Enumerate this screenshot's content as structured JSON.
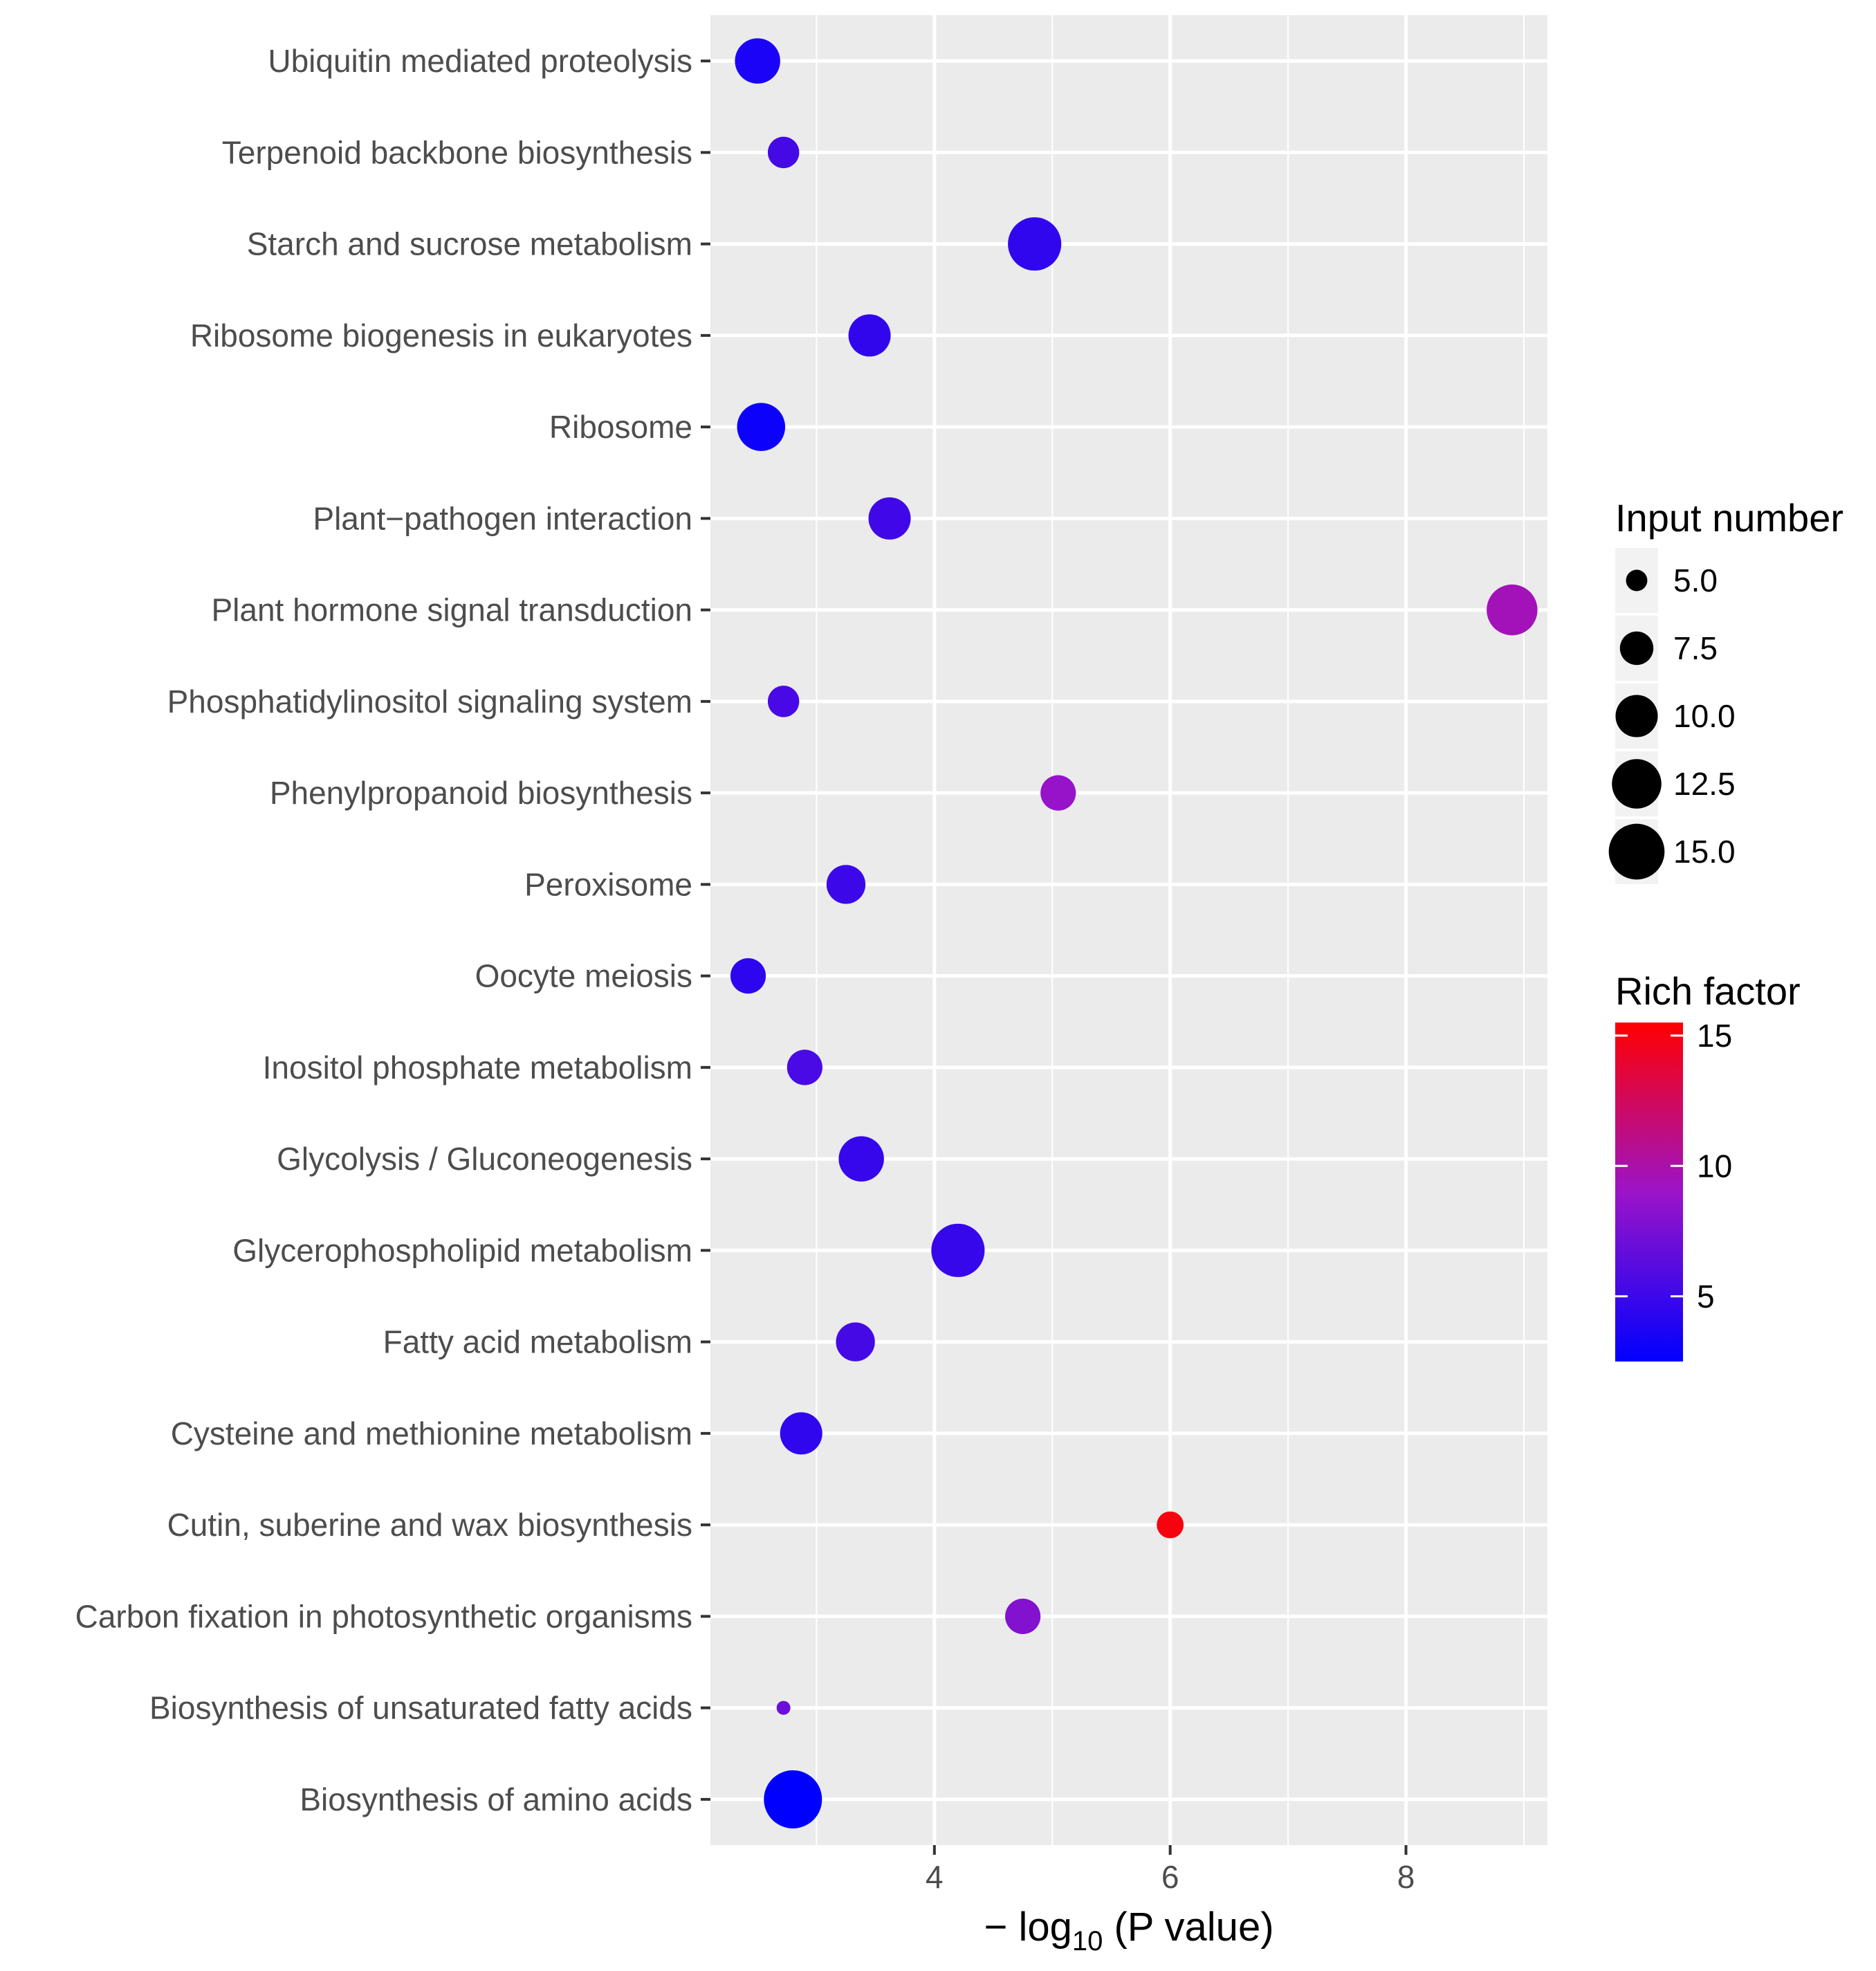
{
  "chart_data": {
    "type": "scatter",
    "title": "",
    "xlabel": {
      "prefix": "− log",
      "subscript": "10",
      "suffix": " (P value)"
    },
    "ylabel": "",
    "xlim": [
      2.1,
      9.2
    ],
    "xticks": [
      4,
      6,
      8
    ],
    "xtick_labels": [
      "4",
      "6",
      "8"
    ],
    "grid": true,
    "categories": [
      "Ubiquitin mediated proteolysis",
      "Terpenoid backbone biosynthesis",
      "Starch and sucrose metabolism",
      "Ribosome biogenesis in eukaryotes",
      "Ribosome",
      "Plant−pathogen interaction",
      "Plant hormone signal transduction",
      "Phosphatidylinositol signaling system",
      "Phenylpropanoid biosynthesis",
      "Peroxisome",
      "Oocyte meiosis",
      "Inositol phosphate metabolism",
      "Glycolysis / Gluconeogenesis",
      "Glycerophospholipid metabolism",
      "Fatty acid metabolism",
      "Cysteine and methionine metabolism",
      "Cutin, suberine and wax biosynthesis",
      "Carbon fixation in photosynthetic organisms",
      "Biosynthesis of unsaturated fatty acids",
      "Biosynthesis of amino acids"
    ],
    "points": [
      {
        "category": "Ubiquitin mediated proteolysis",
        "x": 2.5,
        "input_number": 11,
        "rich_factor": 3.6
      },
      {
        "category": "Terpenoid backbone biosynthesis",
        "x": 2.72,
        "input_number": 7,
        "rich_factor": 5.4
      },
      {
        "category": "Starch and sucrose metabolism",
        "x": 4.85,
        "input_number": 14,
        "rich_factor": 4.5
      },
      {
        "category": "Ribosome biogenesis in eukaryotes",
        "x": 3.45,
        "input_number": 10,
        "rich_factor": 4.6
      },
      {
        "category": "Ribosome",
        "x": 2.53,
        "input_number": 12,
        "rich_factor": 3.0
      },
      {
        "category": "Plant−pathogen interaction",
        "x": 3.62,
        "input_number": 10,
        "rich_factor": 5.2
      },
      {
        "category": "Plant hormone signal transduction",
        "x": 8.9,
        "input_number": 13,
        "rich_factor": 9.5
      },
      {
        "category": "Phosphatidylinositol signaling system",
        "x": 2.72,
        "input_number": 7,
        "rich_factor": 5.5
      },
      {
        "category": "Phenylpropanoid biosynthesis",
        "x": 5.05,
        "input_number": 8,
        "rich_factor": 8.8
      },
      {
        "category": "Peroxisome",
        "x": 3.25,
        "input_number": 9,
        "rich_factor": 5.0
      },
      {
        "category": "Oocyte meiosis",
        "x": 2.42,
        "input_number": 8,
        "rich_factor": 4.4
      },
      {
        "category": "Inositol phosphate metabolism",
        "x": 2.9,
        "input_number": 8,
        "rich_factor": 5.6
      },
      {
        "category": "Glycolysis / Gluconeogenesis",
        "x": 3.38,
        "input_number": 11,
        "rich_factor": 4.8
      },
      {
        "category": "Glycerophospholipid metabolism",
        "x": 4.2,
        "input_number": 14,
        "rich_factor": 4.8
      },
      {
        "category": "Fatty acid metabolism",
        "x": 3.33,
        "input_number": 9,
        "rich_factor": 5.4
      },
      {
        "category": "Cysteine and methionine metabolism",
        "x": 2.87,
        "input_number": 10,
        "rich_factor": 4.5
      },
      {
        "category": "Cutin, suberine and wax biosynthesis",
        "x": 6.0,
        "input_number": 6,
        "rich_factor": 15.0
      },
      {
        "category": "Carbon fixation in photosynthetic organisms",
        "x": 4.75,
        "input_number": 8,
        "rich_factor": 8.0
      },
      {
        "category": "Biosynthesis of unsaturated fatty acids",
        "x": 2.72,
        "input_number": 4,
        "rich_factor": 7.0
      },
      {
        "category": "Biosynthesis of amino acids",
        "x": 2.8,
        "input_number": 16,
        "rich_factor": 2.5
      }
    ],
    "size_legend": {
      "title": "Input number",
      "values": [
        5.0,
        7.5,
        10.0,
        12.5,
        15.0
      ],
      "labels": [
        "5.0",
        "7.5",
        "10.0",
        "12.5",
        "15.0"
      ]
    },
    "color_legend": {
      "title": "Rich factor",
      "range": [
        2.5,
        15.5
      ],
      "ticks": [
        5,
        10,
        15
      ],
      "tick_labels": [
        "5",
        "10",
        "15"
      ],
      "low_color": "#0000ff",
      "high_color": "#ff0000"
    },
    "colors": {
      "panel_background": "#ebebeb",
      "grid_major": "#ffffff",
      "text": "#4d4d4d"
    }
  }
}
